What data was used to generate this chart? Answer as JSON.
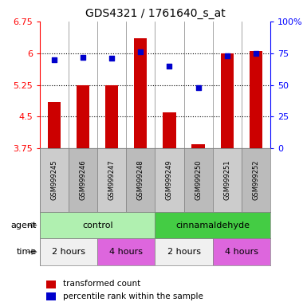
{
  "title": "GDS4321 / 1761640_s_at",
  "samples": [
    "GSM999245",
    "GSM999246",
    "GSM999247",
    "GSM999248",
    "GSM999249",
    "GSM999250",
    "GSM999251",
    "GSM999252"
  ],
  "bar_values": [
    4.85,
    5.25,
    5.25,
    6.35,
    4.6,
    3.85,
    6.0,
    6.05
  ],
  "dot_values": [
    70,
    72,
    71,
    76,
    65,
    48,
    73,
    75
  ],
  "bar_color": "#cc0000",
  "dot_color": "#0000cc",
  "ylim_left": [
    3.75,
    6.75
  ],
  "ylim_right": [
    0,
    100
  ],
  "yticks_left": [
    3.75,
    4.5,
    5.25,
    6.0,
    6.75
  ],
  "ytick_labels_left": [
    "3.75",
    "4.5",
    "5.25",
    "6",
    "6.75"
  ],
  "yticks_right": [
    0,
    25,
    50,
    75,
    100
  ],
  "ytick_labels_right": [
    "0",
    "25",
    "50",
    "75",
    "100%"
  ],
  "hlines": [
    6.0,
    5.25,
    4.5
  ],
  "agent_groups": [
    {
      "label": "control",
      "start": 0,
      "end": 3,
      "color": "#b0f0b0"
    },
    {
      "label": "cinnamaldehyde",
      "start": 4,
      "end": 7,
      "color": "#44cc44"
    }
  ],
  "time_groups": [
    {
      "label": "2 hours",
      "start": 0,
      "end": 1,
      "color": "#f0f0f0"
    },
    {
      "label": "4 hours",
      "start": 2,
      "end": 3,
      "color": "#dd66dd"
    },
    {
      "label": "2 hours",
      "start": 4,
      "end": 5,
      "color": "#f0f0f0"
    },
    {
      "label": "4 hours",
      "start": 6,
      "end": 7,
      "color": "#dd66dd"
    }
  ],
  "legend_bar_label": "transformed count",
  "legend_dot_label": "percentile rank within the sample",
  "bar_width": 0.45,
  "sample_bg_even": "#cccccc",
  "sample_bg_odd": "#bbbbbb"
}
